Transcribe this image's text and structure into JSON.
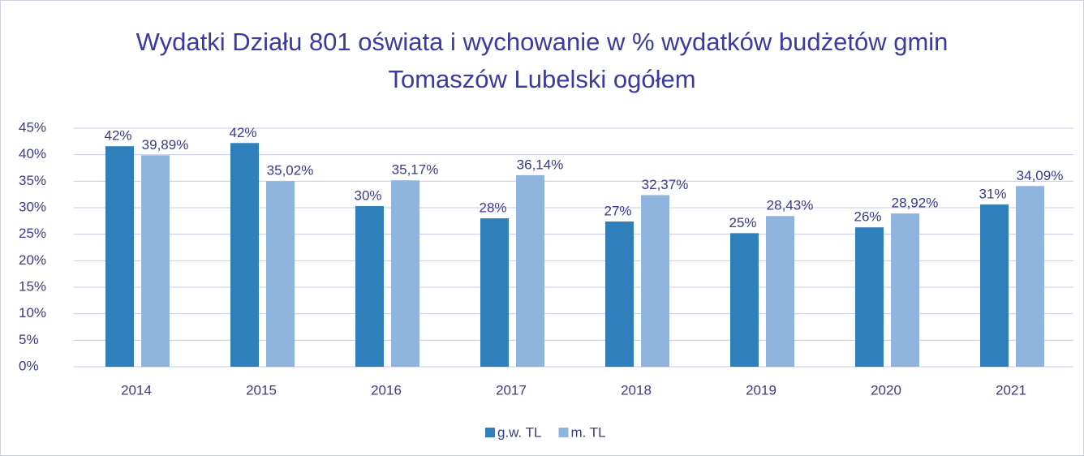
{
  "chart_data": {
    "type": "bar",
    "title": "Wydatki Działu 801 oświata i wychowanie w % wydatków budżetów gmin Tomaszów Lubelski ogółem",
    "categories": [
      "2014",
      "2015",
      "2016",
      "2017",
      "2018",
      "2019",
      "2020",
      "2021"
    ],
    "series": [
      {
        "name": "g.w. TL",
        "color": "#2e7fba",
        "values": [
          41.6,
          42.2,
          30.3,
          28.0,
          27.4,
          25.2,
          26.3,
          30.6
        ],
        "value_labels": [
          "42%",
          "42%",
          "30%",
          "28%",
          "27%",
          "25%",
          "26%",
          "31%"
        ]
      },
      {
        "name": "m. TL",
        "color": "#8fb4de",
        "values": [
          39.89,
          35.02,
          35.17,
          36.14,
          32.37,
          28.43,
          28.92,
          34.09
        ],
        "value_labels": [
          "39,89%",
          "35,02%",
          "35,17%",
          "36,14%",
          "32,37%",
          "28,43%",
          "28,92%",
          "34,09%"
        ]
      }
    ],
    "ylim": [
      0,
      45
    ],
    "yticks": [
      {
        "value": 0,
        "label": "0%"
      },
      {
        "value": 5,
        "label": "5%"
      },
      {
        "value": 10,
        "label": "10%"
      },
      {
        "value": 15,
        "label": "15%"
      },
      {
        "value": 20,
        "label": "20%"
      },
      {
        "value": 25,
        "label": "25%"
      },
      {
        "value": 30,
        "label": "30%"
      },
      {
        "value": 35,
        "label": "35%"
      },
      {
        "value": 40,
        "label": "40%"
      },
      {
        "value": 45,
        "label": "45%"
      }
    ],
    "grid": true,
    "legend": "bottom"
  }
}
